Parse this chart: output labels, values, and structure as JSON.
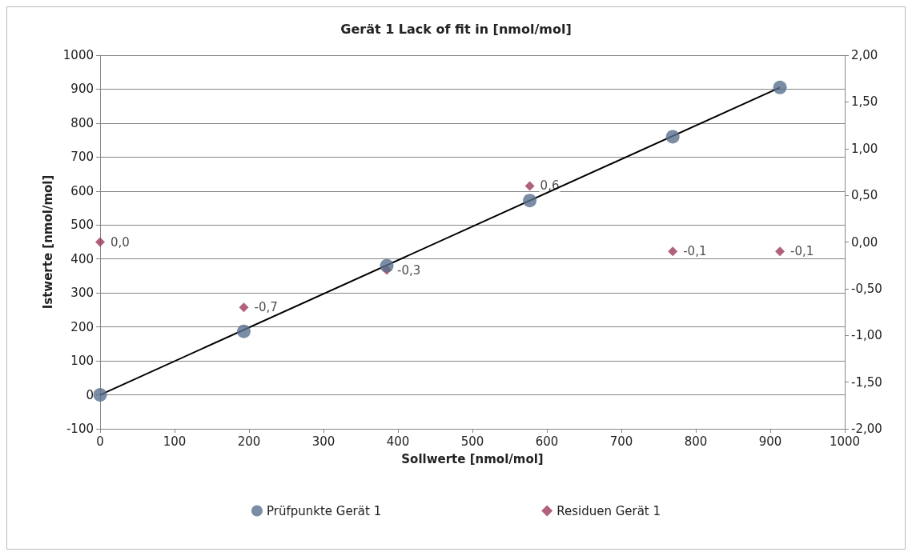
{
  "chart_data": {
    "type": "scatter",
    "title": "Gerät 1 Lack of fit in [nmol/mol]",
    "xlabel": "Sollwerte [nmol/mol]",
    "ylabel": "Istwerte [nmol/mol]",
    "xlim": [
      0,
      1000
    ],
    "xticks": [
      0,
      100,
      200,
      300,
      400,
      500,
      600,
      700,
      800,
      900,
      1000
    ],
    "ylim": [
      -100,
      1000
    ],
    "yticks": [
      -100,
      0,
      100,
      200,
      300,
      400,
      500,
      600,
      700,
      800,
      900,
      1000
    ],
    "y2lim": [
      -2,
      2
    ],
    "y2ticks": [
      {
        "value": -2,
        "label": "-2,00"
      },
      {
        "value": -1.5,
        "label": "-1,50"
      },
      {
        "value": -1,
        "label": "-1,00"
      },
      {
        "value": -0.5,
        "label": "-0,50"
      },
      {
        "value": 0,
        "label": "0,00"
      },
      {
        "value": 0.5,
        "label": "0,50"
      },
      {
        "value": 1,
        "label": "1,00"
      },
      {
        "value": 1.5,
        "label": "1,50"
      },
      {
        "value": 2,
        "label": "2,00"
      }
    ],
    "grid": "y",
    "legend": "bottom",
    "series": [
      {
        "name": "Prüfpunkte Gerät 1",
        "marker": "circle",
        "color": "#5a6f8f",
        "x": [
          0,
          193,
          385,
          577,
          769,
          913
        ],
        "values": [
          0,
          187,
          380,
          572,
          760,
          905
        ]
      },
      {
        "name": "Residuen Gerät 1",
        "type": "scatter",
        "marker": "diamond",
        "axis": "y2",
        "color": "#9e3a5a",
        "x": [
          0,
          193,
          385,
          577,
          769,
          913
        ],
        "values": [
          0.0,
          -0.7,
          -0.3,
          0.6,
          -0.1,
          -0.1
        ],
        "value_labels": [
          "0,0",
          "-0,7",
          "-0,3",
          "0,6",
          "-0,1",
          "-0,1"
        ]
      },
      {
        "type": "line",
        "marker": "none",
        "color": "#000000",
        "x": [
          0,
          913
        ],
        "values": [
          0,
          905
        ]
      }
    ]
  }
}
